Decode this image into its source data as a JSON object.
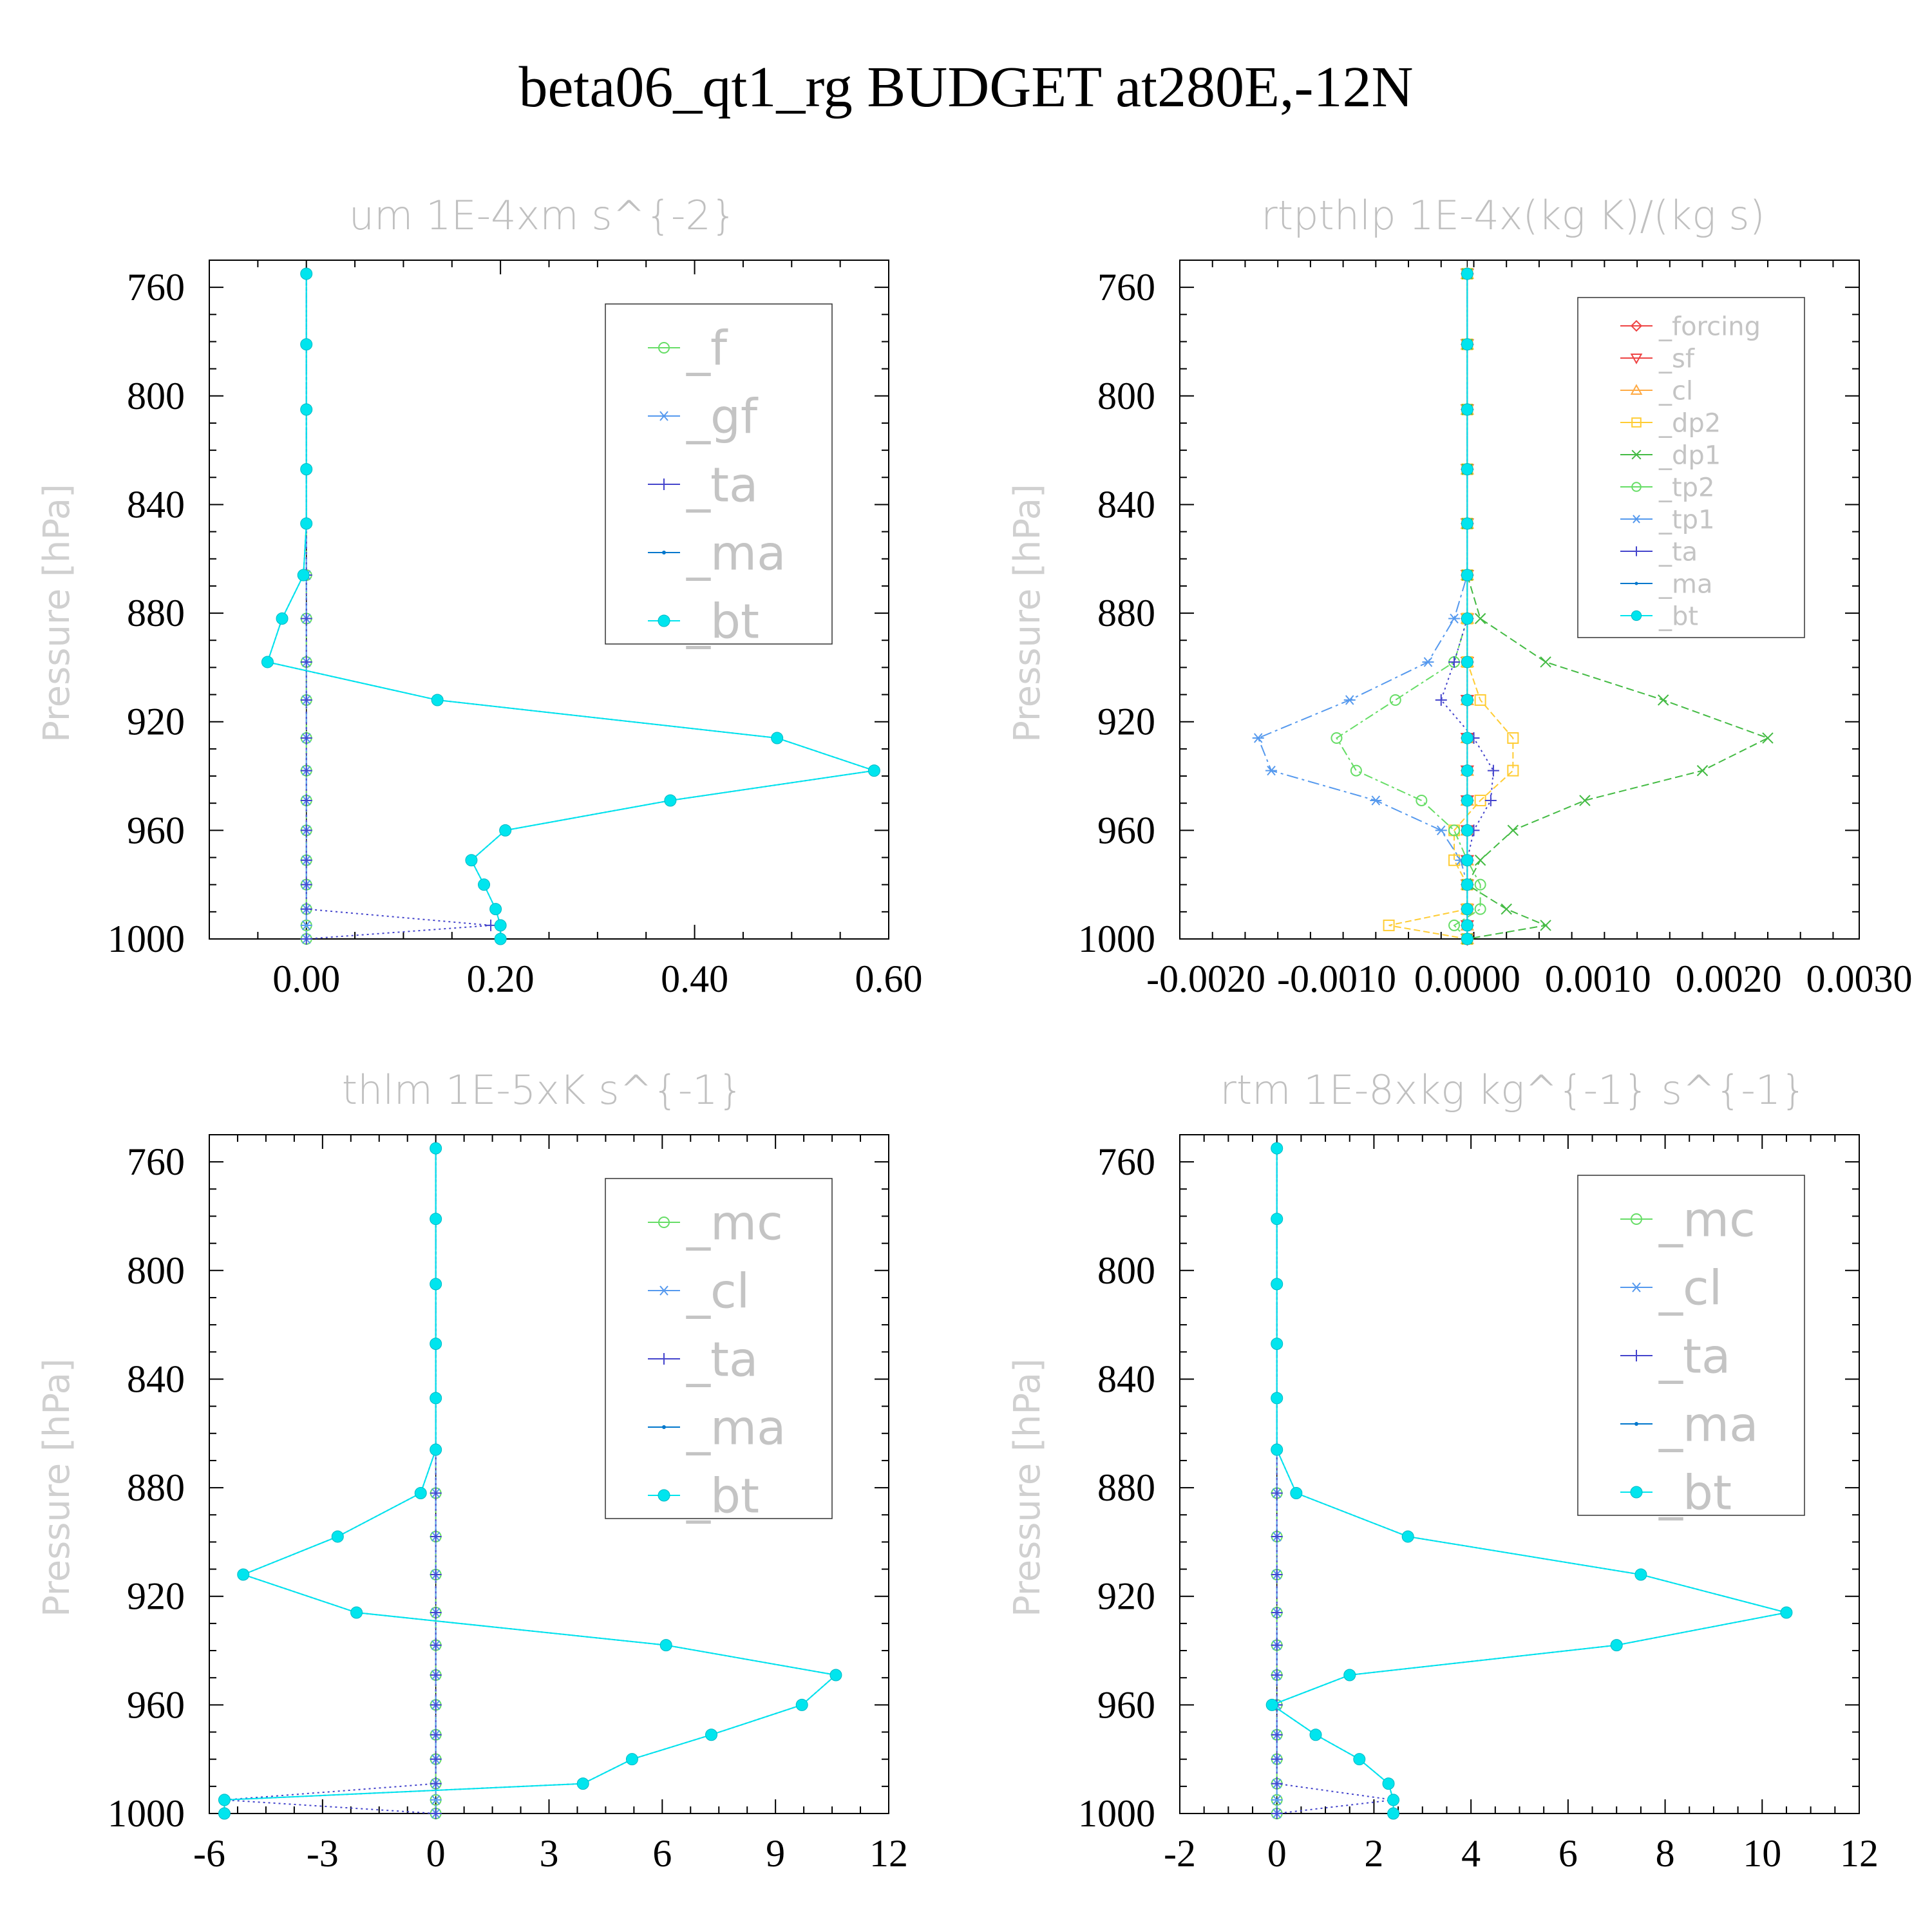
{
  "figure": {
    "title": "beta06_qt1_rg  BUDGET at280E,-12N"
  },
  "chart_data": [
    {
      "type": "line",
      "title": "um   1E-4xm s^{-2}",
      "ylabel": "Pressure [hPa]",
      "xlabel": "",
      "xlim": [
        -0.1,
        0.6
      ],
      "ylim": [
        1000,
        750
      ],
      "xticks": [
        0.0,
        0.2,
        0.4,
        0.6
      ],
      "xtick_labels": [
        "0.00",
        "0.20",
        "0.40",
        "0.60"
      ],
      "yticks": [
        760,
        800,
        840,
        880,
        920,
        960,
        1000
      ],
      "ytick_labels": [
        "760",
        "800",
        "840",
        "880",
        "920",
        "960",
        "1000"
      ],
      "legend": "top-right",
      "p": [
        755,
        781,
        805,
        827,
        847,
        866,
        882,
        898,
        912,
        926,
        938,
        949,
        960,
        971,
        980,
        989,
        995,
        1000
      ],
      "series": [
        {
          "name": "_f",
          "color": "#66dd66",
          "marker": "circle-open",
          "values": [
            0,
            0,
            0,
            0,
            0,
            0,
            0,
            0,
            0,
            0,
            0,
            0,
            0,
            0,
            0,
            0,
            0,
            0
          ]
        },
        {
          "name": "_gf",
          "color": "#5599ee",
          "marker": "asterisk",
          "values": [
            0,
            0,
            0,
            0,
            0,
            0,
            0,
            0,
            0,
            0,
            0,
            0,
            0,
            0,
            0,
            0,
            0,
            0
          ]
        },
        {
          "name": "_ta",
          "color": "#4444cc",
          "marker": "plus",
          "values": [
            0,
            0,
            0,
            0,
            0,
            0,
            0,
            0,
            0,
            0,
            0,
            0,
            0,
            0,
            0,
            0,
            0.19,
            0
          ]
        },
        {
          "name": "_ma",
          "color": "#0077cc",
          "marker": "dot",
          "values": [
            0,
            0,
            0,
            0,
            0,
            -0.003,
            -0.025,
            -0.04,
            0.135,
            0.485,
            0.585,
            0.375,
            0.205,
            0.17,
            0.183,
            0.195,
            0.2,
            0.2
          ]
        },
        {
          "name": "_bt",
          "color": "#00e5ee",
          "marker": "circle-filled",
          "values": [
            0,
            0,
            0,
            0,
            0,
            -0.003,
            -0.025,
            -0.04,
            0.135,
            0.485,
            0.585,
            0.375,
            0.205,
            0.17,
            0.183,
            0.195,
            0.2,
            0.2
          ]
        }
      ]
    },
    {
      "type": "line",
      "title": "rtpthlp   1E-4x(kg K)/(kg s)",
      "ylabel": "Pressure [hPa]",
      "xlabel": "",
      "xlim": [
        -0.0022,
        0.003
      ],
      "ylim": [
        1000,
        750
      ],
      "xticks": [
        -0.002,
        -0.001,
        0.0,
        0.001,
        0.002,
        0.003
      ],
      "xtick_labels": [
        "-0.0020",
        "-0.0010",
        "0.0000",
        "0.0010",
        "0.0020",
        "0.0030"
      ],
      "yticks": [
        760,
        800,
        840,
        880,
        920,
        960,
        1000
      ],
      "ytick_labels": [
        "760",
        "800",
        "840",
        "880",
        "920",
        "960",
        "1000"
      ],
      "legend": "top-right",
      "p": [
        755,
        781,
        805,
        827,
        847,
        866,
        882,
        898,
        912,
        926,
        938,
        949,
        960,
        971,
        980,
        989,
        995,
        1000
      ],
      "series": [
        {
          "name": "_forcing",
          "color": "#ee4444",
          "marker": "diamond-open",
          "values": [
            0,
            0,
            0,
            0,
            0,
            0,
            0,
            0,
            0,
            0,
            0,
            0,
            0,
            0,
            0,
            0,
            0,
            0
          ]
        },
        {
          "name": "_sf",
          "color": "#ee4444",
          "marker": "triangle-down",
          "values": [
            0,
            0,
            0,
            0,
            0,
            0,
            0,
            0,
            0,
            0,
            0,
            0,
            0,
            0,
            0,
            0,
            0,
            0
          ]
        },
        {
          "name": "_cl",
          "color": "#ffaa44",
          "marker": "triangle-up",
          "values": [
            0,
            0,
            0,
            0,
            0,
            0,
            0,
            0,
            0,
            0,
            0,
            0,
            0,
            0,
            0,
            0,
            0,
            0
          ]
        },
        {
          "name": "_dp2",
          "color": "#ffcc33",
          "marker": "square-open",
          "values": [
            0,
            0,
            0,
            0,
            0,
            0,
            0,
            0,
            0.0001,
            0.00035,
            0.00035,
            0.0001,
            -0.0001,
            -0.0001,
            0,
            0,
            -0.0006,
            0
          ]
        },
        {
          "name": "_dp1",
          "color": "#44bb44",
          "marker": "cross",
          "values": [
            0,
            0,
            0,
            0,
            0,
            0,
            0.0001,
            0.0006,
            0.0015,
            0.0023,
            0.0018,
            0.0009,
            0.00035,
            0.0001,
            0,
            0.0003,
            0.0006,
            0
          ]
        },
        {
          "name": "_tp2",
          "color": "#66dd66",
          "marker": "circle-open",
          "values": [
            0,
            0,
            0,
            0,
            0,
            0,
            0,
            -0.0001,
            -0.00055,
            -0.001,
            -0.00085,
            -0.00035,
            -0.0001,
            0,
            0.0001,
            0.0001,
            -0.0001,
            0
          ]
        },
        {
          "name": "_tp1",
          "color": "#5599ee",
          "marker": "asterisk",
          "values": [
            0,
            0,
            0,
            0,
            0,
            0,
            -0.0001,
            -0.0003,
            -0.0009,
            -0.0016,
            -0.0015,
            -0.0007,
            -0.0002,
            -5e-05,
            0,
            0,
            0,
            0
          ]
        },
        {
          "name": "_ta",
          "color": "#4444cc",
          "marker": "plus",
          "values": [
            0,
            0,
            0,
            0,
            0,
            0,
            0,
            -0.0001,
            -0.0002,
            5e-05,
            0.0002,
            0.00018,
            5e-05,
            0,
            0,
            0,
            0,
            0
          ]
        },
        {
          "name": "_ma",
          "color": "#0077cc",
          "marker": "dot",
          "values": [
            0,
            0,
            0,
            0,
            0,
            0,
            0,
            0,
            0,
            0,
            0,
            0,
            0,
            0,
            0,
            0,
            0,
            0
          ]
        },
        {
          "name": "_bt",
          "color": "#00e5ee",
          "marker": "circle-filled",
          "values": [
            0,
            0,
            0,
            0,
            0,
            0,
            0,
            0,
            0,
            0,
            0,
            0,
            0,
            0,
            0,
            0,
            0,
            0
          ]
        }
      ]
    },
    {
      "type": "line",
      "title": "thlm   1E-5xK s^{-1}",
      "ylabel": "Pressure [hPa]",
      "xlabel": "",
      "xlim": [
        -6,
        12
      ],
      "ylim": [
        1000,
        750
      ],
      "xticks": [
        -6,
        -3,
        0,
        3,
        6,
        9,
        12
      ],
      "xtick_labels": [
        "-6",
        "-3",
        "0",
        "3",
        "6",
        "9",
        "12"
      ],
      "yticks": [
        760,
        800,
        840,
        880,
        920,
        960,
        1000
      ],
      "ytick_labels": [
        "760",
        "800",
        "840",
        "880",
        "920",
        "960",
        "1000"
      ],
      "legend": "top-right",
      "p": [
        755,
        781,
        805,
        827,
        847,
        866,
        882,
        898,
        912,
        926,
        938,
        949,
        960,
        971,
        980,
        989,
        995,
        1000
      ],
      "series": [
        {
          "name": "_mc",
          "color": "#66dd66",
          "marker": "circle-open",
          "values": [
            0,
            0,
            0,
            0,
            0,
            0,
            0,
            0,
            0,
            0,
            0,
            0,
            0,
            0,
            0,
            0,
            0,
            0
          ]
        },
        {
          "name": "_cl",
          "color": "#5599ee",
          "marker": "asterisk",
          "values": [
            0,
            0,
            0,
            0,
            0,
            0,
            0,
            0,
            0,
            0,
            0,
            0,
            0,
            0,
            0,
            0,
            0,
            0
          ]
        },
        {
          "name": "_ta",
          "color": "#4444cc",
          "marker": "plus",
          "values": [
            0,
            0,
            0,
            0,
            0,
            0,
            0,
            0,
            0,
            0,
            0,
            0,
            0,
            0,
            0,
            0,
            -5.6,
            0
          ]
        },
        {
          "name": "_ma",
          "color": "#0077cc",
          "marker": "dot",
          "values": [
            0,
            0,
            0,
            0,
            0,
            0,
            -0.4,
            -2.6,
            -5.1,
            -2.1,
            6.1,
            10.6,
            9.7,
            7.3,
            5.2,
            3.9,
            -5.6,
            -5.6
          ]
        },
        {
          "name": "_bt",
          "color": "#00e5ee",
          "marker": "circle-filled",
          "values": [
            0,
            0,
            0,
            0,
            0,
            0,
            -0.4,
            -2.6,
            -5.1,
            -2.1,
            6.1,
            10.6,
            9.7,
            7.3,
            5.2,
            3.9,
            -5.6,
            -5.6
          ]
        }
      ]
    },
    {
      "type": "line",
      "title": "rtm   1E-8xkg kg^{-1} s^{-1}",
      "ylabel": "Pressure [hPa]",
      "xlabel": "",
      "xlim": [
        -2,
        12
      ],
      "ylim": [
        1000,
        750
      ],
      "xticks": [
        -2,
        0,
        2,
        4,
        6,
        8,
        10,
        12
      ],
      "xtick_labels": [
        "-2",
        "0",
        "2",
        "4",
        "6",
        "8",
        "10",
        "12"
      ],
      "yticks": [
        760,
        800,
        840,
        880,
        920,
        960,
        1000
      ],
      "ytick_labels": [
        "760",
        "800",
        "840",
        "880",
        "920",
        "960",
        "1000"
      ],
      "legend": "top-right",
      "p": [
        755,
        781,
        805,
        827,
        847,
        866,
        882,
        898,
        912,
        926,
        938,
        949,
        960,
        971,
        980,
        989,
        995,
        1000
      ],
      "series": [
        {
          "name": "_mc",
          "color": "#66dd66",
          "marker": "circle-open",
          "values": [
            0,
            0,
            0,
            0,
            0,
            0,
            0,
            0,
            0,
            0,
            0,
            0,
            0,
            0,
            0,
            0,
            0,
            0
          ]
        },
        {
          "name": "_cl",
          "color": "#5599ee",
          "marker": "asterisk",
          "values": [
            0,
            0,
            0,
            0,
            0,
            0,
            0,
            0,
            0,
            0,
            0,
            0,
            0,
            0,
            0,
            0,
            0,
            0
          ]
        },
        {
          "name": "_ta",
          "color": "#4444cc",
          "marker": "plus",
          "values": [
            0,
            0,
            0,
            0,
            0,
            0,
            0,
            0,
            0,
            0,
            0,
            0,
            0,
            0,
            0,
            0,
            2.4,
            0
          ]
        },
        {
          "name": "_ma",
          "color": "#0077cc",
          "marker": "dot",
          "values": [
            0,
            0,
            0,
            0,
            0,
            0,
            0.4,
            2.7,
            7.5,
            10.5,
            7.0,
            1.5,
            -0.1,
            0.8,
            1.7,
            2.3,
            2.4,
            2.4
          ]
        },
        {
          "name": "_bt",
          "color": "#00e5ee",
          "marker": "circle-filled",
          "values": [
            0,
            0,
            0,
            0,
            0,
            0,
            0.4,
            2.7,
            7.5,
            10.5,
            7.0,
            1.5,
            -0.1,
            0.8,
            1.7,
            2.3,
            2.4,
            2.4
          ]
        }
      ]
    }
  ]
}
